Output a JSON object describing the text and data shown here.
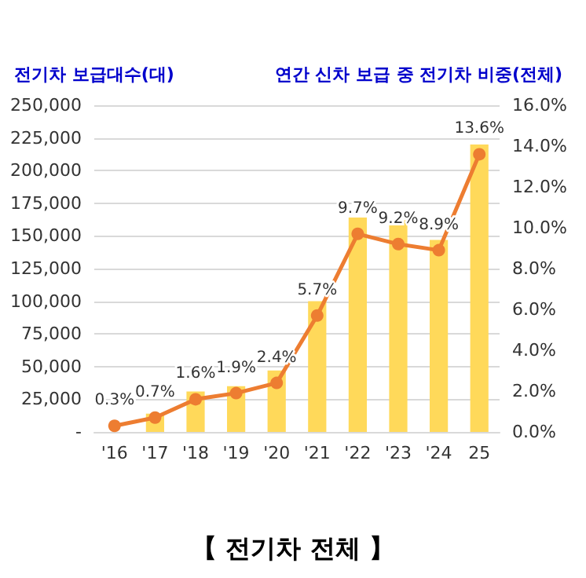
{
  "chart_data": {
    "type": "bar",
    "title": "【 전기차 전체 】",
    "ylabel": "전기차 보급대수(대)",
    "y2label": "연간 신차 보급 중 전기차 비중(전체)",
    "categories": [
      "'16",
      "'17",
      "'18",
      "'19",
      "'20",
      "'21",
      "'22",
      "'23",
      "'24",
      "25"
    ],
    "series": [
      {
        "color": "#ffd95a",
        "values": [
          null,
          14000,
          31000,
          35000,
          47000,
          100000,
          164000,
          162000,
          147000,
          220000
        ]
      },
      {
        "type": "line",
        "axis": "y2",
        "color": "#ed7d31",
        "marker": "circle",
        "values": [
          0.3,
          0.7,
          1.6,
          1.9,
          2.4,
          5.7,
          9.7,
          9.2,
          8.9,
          13.6
        ],
        "value_labels": [
          "0.3%",
          "0.7%",
          "1.6%",
          "1.9%",
          "2.4%",
          "5.7%",
          "9.7%",
          "9.2%",
          "8.9%",
          "13.6%"
        ]
      }
    ],
    "ylim": [
      0,
      250000
    ],
    "yticks": [
      {
        "value": 0,
        "label": "-"
      },
      {
        "value": 25000,
        "label": "25,000"
      },
      {
        "value": 50000,
        "label": "50,000"
      },
      {
        "value": 75000,
        "label": "75,000"
      },
      {
        "value": 100000,
        "label": "100,000"
      },
      {
        "value": 125000,
        "label": "125,000"
      },
      {
        "value": 150000,
        "label": "150,000"
      },
      {
        "value": 175000,
        "label": "175,000"
      },
      {
        "value": 200000,
        "label": "200,000"
      },
      {
        "value": 225000,
        "label": "225,000"
      },
      {
        "value": 250000,
        "label": "250,000"
      }
    ],
    "y2lim": [
      0,
      16
    ],
    "y2ticks": [
      {
        "value": 0,
        "label": "0.0%"
      },
      {
        "value": 2,
        "label": "2.0%"
      },
      {
        "value": 4,
        "label": "4.0%"
      },
      {
        "value": 6,
        "label": "6.0%"
      },
      {
        "value": 8,
        "label": "8.0%"
      },
      {
        "value": 10,
        "label": "10.0%"
      },
      {
        "value": 12,
        "label": "12.0%"
      },
      {
        "value": 14,
        "label": "14.0%"
      },
      {
        "value": 16,
        "label": "16.0%"
      }
    ],
    "grid": "y"
  }
}
